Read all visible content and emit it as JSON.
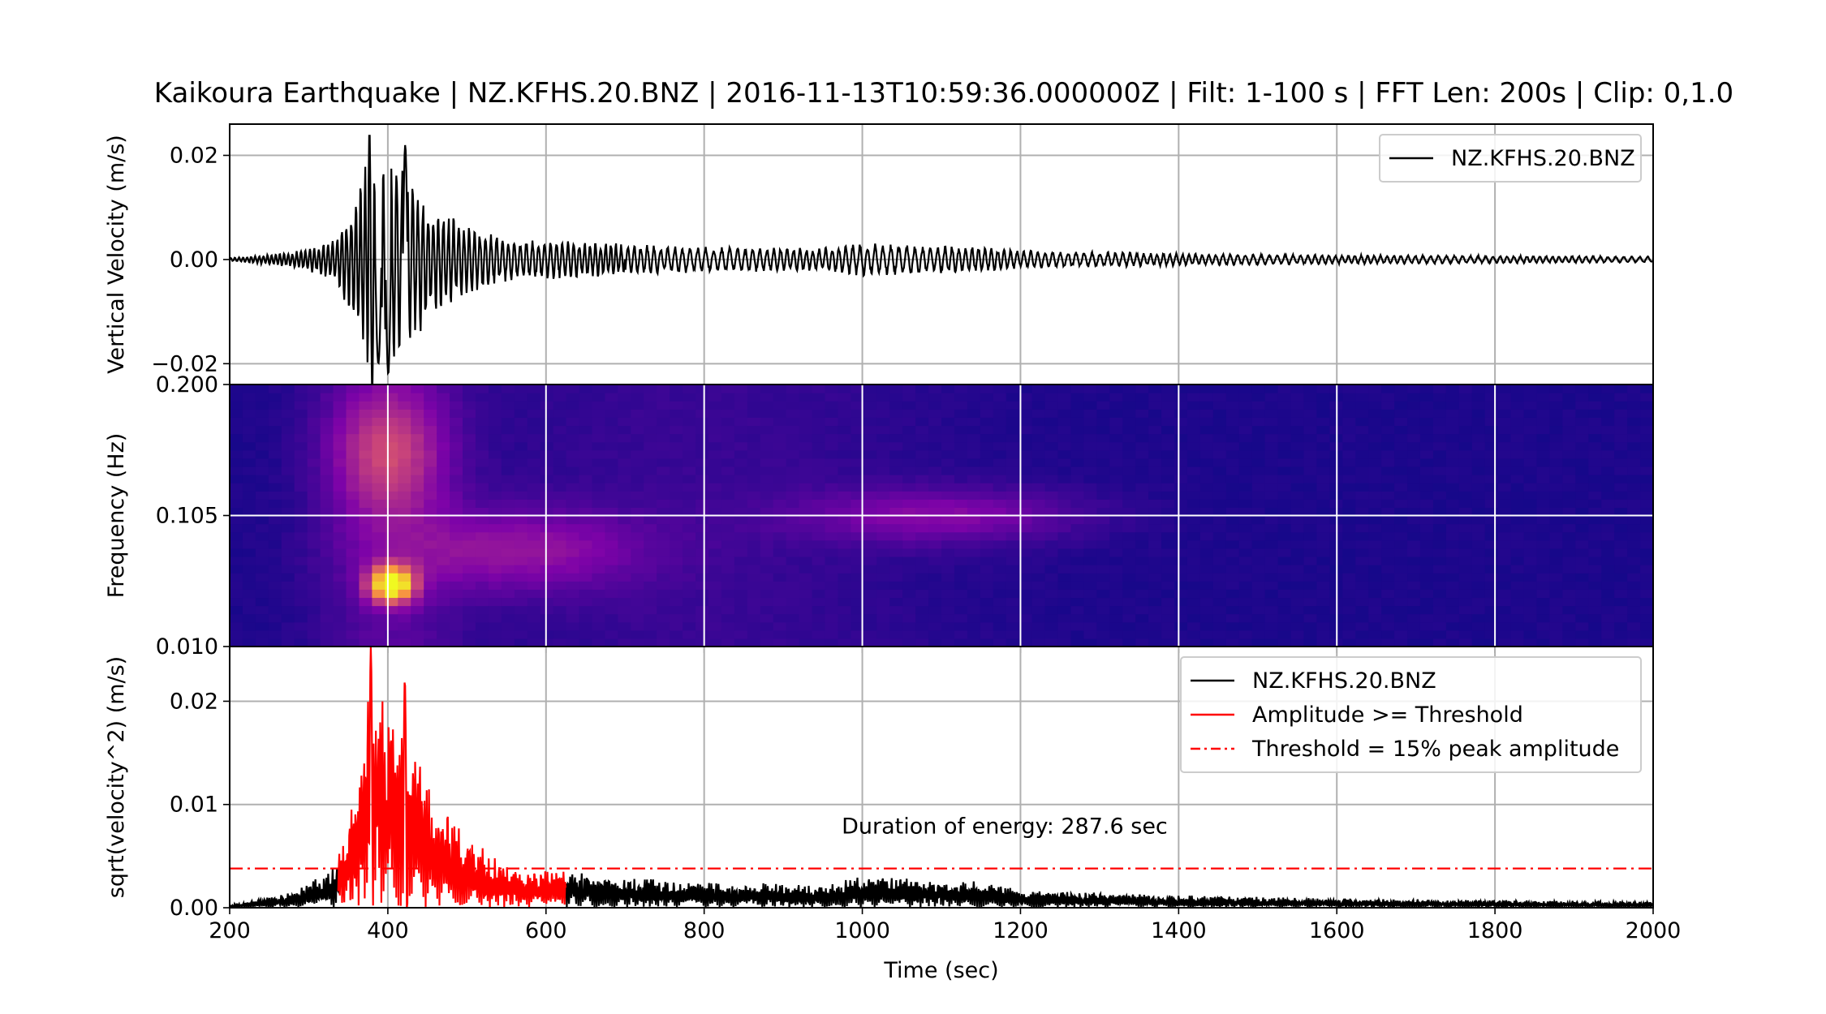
{
  "figure": {
    "title": "Kaikoura Earthquake | NZ.KFHS.20.BNZ | 2016-11-13T10:59:36.000000Z | Filt: 1-100 s | FFT Len: 200s | Clip: 0,1.0"
  },
  "chart_data": [
    {
      "type": "line",
      "name": "seismogram",
      "ylabel": "Vertical Velocity (m/s)",
      "xlim": [
        200,
        2000
      ],
      "ylim": [
        -0.024,
        0.026
      ],
      "yticks": [
        -0.02,
        0.0,
        0.02
      ],
      "ytick_labels": [
        "−0.02",
        "0.00",
        "0.02"
      ],
      "grid": true,
      "legend": {
        "placement": "upper-right",
        "entries": [
          "NZ.KFHS.20.BNZ"
        ]
      },
      "series": [
        {
          "name": "NZ.KFHS.20.BNZ",
          "color": "#000000",
          "envelope": [
            [
              200,
              0.0003
            ],
            [
              280,
              0.0015
            ],
            [
              330,
              0.004
            ],
            [
              360,
              0.012
            ],
            [
              380,
              0.024
            ],
            [
              400,
              0.02
            ],
            [
              420,
              0.02
            ],
            [
              450,
              0.012
            ],
            [
              500,
              0.007
            ],
            [
              560,
              0.004
            ],
            [
              650,
              0.0035
            ],
            [
              800,
              0.0025
            ],
            [
              950,
              0.0023
            ],
            [
              1000,
              0.0032
            ],
            [
              1100,
              0.0028
            ],
            [
              1150,
              0.0025
            ],
            [
              1200,
              0.0018
            ],
            [
              1400,
              0.0012
            ],
            [
              1600,
              0.0009
            ],
            [
              2000,
              0.0006
            ]
          ]
        }
      ]
    },
    {
      "type": "heatmap",
      "name": "spectrogram",
      "ylabel": "Frequency (Hz)",
      "xlim": [
        200,
        2000
      ],
      "ylim": [
        0.01,
        0.2
      ],
      "yticks": [
        0.01,
        0.105,
        0.2
      ],
      "ytick_labels": [
        "0.010",
        "0.105",
        "0.200"
      ],
      "colormap": "plasma",
      "grid": true,
      "features": [
        {
          "t": 405,
          "f": 0.0555,
          "intensity": 1.0
        },
        {
          "t": 400,
          "f": 0.15,
          "intensity": 0.35
        },
        {
          "t": 560,
          "f": 0.08,
          "intensity": 0.25
        },
        {
          "t": 1100,
          "f": 0.105,
          "intensity": 0.22
        }
      ]
    },
    {
      "type": "line",
      "name": "energy",
      "ylabel": "sqrt(velocity^2) (m/s)",
      "xlabel": "Time (sec)",
      "xlim": [
        200,
        2000
      ],
      "ylim": [
        0,
        0.0253
      ],
      "xticks": [
        200,
        400,
        600,
        800,
        1000,
        1200,
        1400,
        1600,
        1800,
        2000
      ],
      "xtick_labels": [
        "200",
        "400",
        "600",
        "800",
        "1000",
        "1200",
        "1400",
        "1600",
        "1800",
        "2000"
      ],
      "yticks": [
        0.0,
        0.01,
        0.02
      ],
      "ytick_labels": [
        "0.00",
        "0.01",
        "0.02"
      ],
      "grid": true,
      "threshold": 0.0038,
      "duration_start": 337,
      "duration_end": 625,
      "annotation": "Duration of energy: 287.6 sec",
      "annotation_at": [
        1180,
        0.0079
      ],
      "legend": {
        "placement": "upper-right",
        "entries": [
          "NZ.KFHS.20.BNZ",
          "Amplitude >= Threshold",
          "Threshold = 15% peak amplitude"
        ]
      },
      "series": [
        {
          "name": "NZ.KFHS.20.BNZ",
          "color": "#000000"
        },
        {
          "name": "Amplitude >= Threshold",
          "color": "#ff0000"
        },
        {
          "name": "Threshold = 15% peak amplitude",
          "color": "#ff0000"
        }
      ]
    }
  ],
  "colors": {
    "axis": "#000000",
    "grid": "#b0b0b0",
    "accent": "#ff0000",
    "legend_border": "#cccccc"
  }
}
